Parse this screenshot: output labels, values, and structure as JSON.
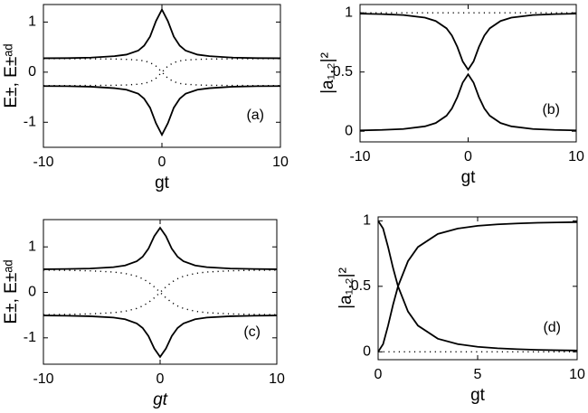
{
  "chart_data": [
    {
      "type": "line",
      "xlabel": "gt",
      "ylabel": "E±, E±ᵃᵈ",
      "annotation": "(a)",
      "xlim": [
        -10,
        10
      ],
      "ylim": [
        -1.5,
        1.35
      ],
      "xticks": [
        -10,
        0,
        10
      ],
      "yticks": [
        -1,
        0,
        1
      ],
      "x": [
        -10,
        -8,
        -6,
        -4,
        -3,
        -2,
        -1.5,
        -1,
        -0.5,
        0,
        0.5,
        1,
        1.5,
        2,
        3,
        4,
        6,
        8,
        10
      ],
      "series": [
        {
          "color": "#000000",
          "style": "solid",
          "values": [
            0.278,
            0.28,
            0.29,
            0.32,
            0.35,
            0.43,
            0.53,
            0.71,
            1.02,
            1.25,
            1.02,
            0.71,
            0.53,
            0.43,
            0.35,
            0.32,
            0.29,
            0.28,
            0.278
          ]
        },
        {
          "color": "#000000",
          "style": "solid",
          "values": [
            -0.278,
            -0.28,
            -0.29,
            -0.32,
            -0.35,
            -0.43,
            -0.53,
            -0.71,
            -1.02,
            -1.25,
            -1.02,
            -0.71,
            -0.53,
            -0.43,
            -0.35,
            -0.32,
            -0.29,
            -0.28,
            -0.278
          ]
        },
        {
          "color": "#000000",
          "style": "dotted",
          "values": [
            -0.269,
            -0.268,
            -0.266,
            -0.262,
            -0.256,
            -0.241,
            -0.225,
            -0.191,
            -0.121,
            0,
            0.121,
            0.191,
            0.225,
            0.241,
            0.256,
            0.262,
            0.266,
            0.268,
            0.269
          ]
        },
        {
          "color": "#000000",
          "style": "dotted",
          "values": [
            0.269,
            0.268,
            0.266,
            0.262,
            0.256,
            0.241,
            0.225,
            0.191,
            0.121,
            0,
            -0.121,
            -0.191,
            -0.225,
            -0.241,
            -0.256,
            -0.262,
            -0.266,
            -0.268,
            -0.269
          ]
        }
      ]
    },
    {
      "type": "line",
      "xlabel": "gt",
      "ylabel": "|a₁,₂|²",
      "annotation": "(b)",
      "xlim": [
        -10,
        10
      ],
      "ylim": [
        -0.09,
        1.07
      ],
      "xticks": [
        -10,
        0,
        10
      ],
      "yticks": [
        0,
        0.5,
        1
      ],
      "x": [
        -10,
        -8,
        -6,
        -4,
        -3,
        -2,
        -1.5,
        -1,
        -0.5,
        0,
        0.5,
        1,
        1.5,
        2,
        3,
        4,
        6,
        8,
        10
      ],
      "series": [
        {
          "color": "#000000",
          "style": "solid",
          "values": [
            0.993,
            0.989,
            0.981,
            0.959,
            0.931,
            0.869,
            0.808,
            0.712,
            0.589,
            0.52,
            0.589,
            0.712,
            0.808,
            0.869,
            0.931,
            0.959,
            0.981,
            0.989,
            0.993
          ]
        },
        {
          "color": "#000000",
          "style": "solid",
          "values": [
            0.007,
            0.011,
            0.019,
            0.041,
            0.069,
            0.131,
            0.192,
            0.288,
            0.411,
            0.48,
            0.411,
            0.288,
            0.192,
            0.131,
            0.069,
            0.041,
            0.019,
            0.011,
            0.007
          ]
        },
        {
          "color": "#000000",
          "style": "dotted",
          "values": [
            1,
            1,
            1,
            1,
            1,
            1,
            1,
            1,
            1,
            1,
            1,
            1,
            1,
            1,
            1,
            1,
            1,
            1,
            1
          ]
        }
      ]
    },
    {
      "type": "line",
      "xlabel": "gt",
      "ylabel": "E±, E±ᵃᵈ",
      "annotation": "(c)",
      "xlim": [
        -10,
        10
      ],
      "ylim": [
        -1.58,
        1.6
      ],
      "xticks": [
        -10,
        0,
        10
      ],
      "yticks": [
        -1,
        0,
        1
      ],
      "x": [
        -10,
        -8,
        -6,
        -4,
        -3,
        -2,
        -1.5,
        -1,
        -0.5,
        0,
        0.5,
        1,
        1.5,
        2,
        3,
        4,
        6,
        8,
        10
      ],
      "series": [
        {
          "color": "#000000",
          "style": "solid",
          "values": [
            0.508,
            0.514,
            0.525,
            0.554,
            0.592,
            0.684,
            0.783,
            0.96,
            1.236,
            1.42,
            1.236,
            0.96,
            0.783,
            0.684,
            0.592,
            0.554,
            0.525,
            0.514,
            0.508
          ]
        },
        {
          "color": "#000000",
          "style": "solid",
          "values": [
            -0.508,
            -0.514,
            -0.525,
            -0.554,
            -0.592,
            -0.684,
            -0.783,
            -0.96,
            -1.236,
            -1.42,
            -1.236,
            -0.96,
            -0.783,
            -0.684,
            -0.592,
            -0.554,
            -0.525,
            -0.514,
            -0.508
          ]
        },
        {
          "color": "#000000",
          "style": "dotted",
          "values": [
            -0.49,
            -0.485,
            -0.474,
            -0.447,
            -0.416,
            -0.354,
            -0.3,
            -0.224,
            -0.121,
            0,
            0.121,
            0.224,
            0.3,
            0.354,
            0.416,
            0.447,
            0.474,
            0.485,
            0.49
          ]
        },
        {
          "color": "#000000",
          "style": "dotted",
          "values": [
            0.49,
            0.485,
            0.474,
            0.447,
            0.416,
            0.354,
            0.3,
            0.224,
            0.121,
            0,
            -0.121,
            -0.224,
            -0.3,
            -0.354,
            -0.416,
            -0.447,
            -0.474,
            -0.485,
            -0.49
          ]
        }
      ]
    },
    {
      "type": "line",
      "xlabel": "gt",
      "ylabel": "|a₁,₂|²",
      "annotation": "(d)",
      "xlim": [
        0,
        10
      ],
      "ylim": [
        -0.06,
        1.03
      ],
      "xticks": [
        0,
        5,
        10
      ],
      "yticks": [
        0,
        0.5,
        1
      ],
      "x": [
        0,
        0.25,
        0.5,
        0.75,
        1,
        1.5,
        2,
        3,
        4,
        5,
        6,
        7,
        8,
        9,
        10
      ],
      "series": [
        {
          "color": "#000000",
          "style": "solid",
          "values": [
            0,
            0.059,
            0.2,
            0.36,
            0.5,
            0.692,
            0.8,
            0.9,
            0.941,
            0.962,
            0.973,
            0.98,
            0.985,
            0.988,
            0.99
          ]
        },
        {
          "color": "#000000",
          "style": "solid",
          "values": [
            1,
            0.941,
            0.8,
            0.64,
            0.5,
            0.308,
            0.2,
            0.1,
            0.059,
            0.038,
            0.027,
            0.02,
            0.015,
            0.012,
            0.01
          ]
        },
        {
          "color": "#000000",
          "style": "dotted",
          "values": [
            0,
            0,
            0,
            0,
            0,
            0,
            0,
            0,
            0,
            0,
            0,
            0,
            0,
            0,
            0
          ]
        }
      ]
    }
  ]
}
